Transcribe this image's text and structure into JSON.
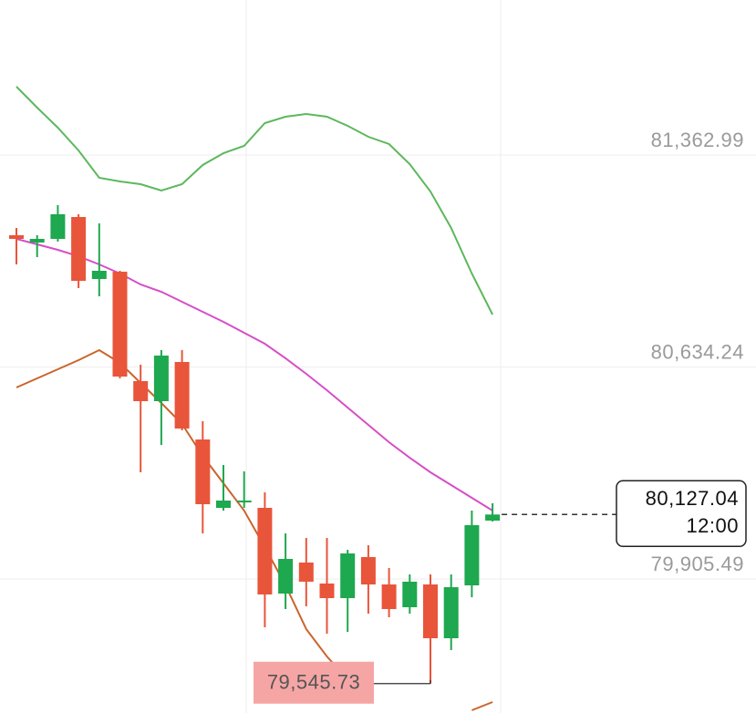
{
  "chart_data": {
    "type": "candlestick",
    "ylim": [
      79444.7,
      81895.8
    ],
    "yticks": [
      {
        "value": 79905.49,
        "label": "79,905.49"
      },
      {
        "value": 80634.24,
        "label": "80,634.24"
      },
      {
        "value": 81362.99,
        "label": "81,362.99"
      }
    ],
    "grid": true,
    "up_color": "#1ea84f",
    "down_color": "#e8553a",
    "open": [
      81087.1,
      81062.0,
      81074.6,
      81149.8,
      80936.7,
      80961.7,
      80585.6,
      80516.7,
      80651.4,
      80385.0,
      80149.9,
      80168.7,
      80149.9,
      79855.3,
      79961.9,
      79889.8,
      79839.6,
      79980.7,
      79886.6,
      79808.3,
      79886.6,
      79701.7,
      79883.5,
      80106.1
    ],
    "high": [
      81112.2,
      81087.1,
      81190.6,
      81159.2,
      81127.9,
      80964.9,
      80642.0,
      80692.2,
      80692.2,
      80447.7,
      80297.3,
      80275.3,
      80203.2,
      80062.2,
      80046.5,
      80046.5,
      80005.8,
      80021.4,
      79943.1,
      79921.1,
      79921.1,
      79921.1,
      80140.5,
      80165.6
    ],
    "low": [
      80986.8,
      81011.9,
      81065.2,
      80905.3,
      80877.1,
      80595.0,
      80272.2,
      80366.2,
      80416.4,
      80062.2,
      80140.5,
      80149.9,
      79739.3,
      79802.0,
      79811.4,
      79717.4,
      79723.7,
      79786.3,
      79773.8,
      79786.3,
      79545.73,
      79661.0,
      79842.8,
      80102.9
    ],
    "close": [
      81074.6,
      81074.6,
      81159.2,
      80930.4,
      80964.9,
      80601.3,
      80516.7,
      80673.4,
      80422.6,
      80162.5,
      80175.0,
      80175.0,
      79852.2,
      79974.4,
      79896.1,
      79839.6,
      79993.2,
      79886.6,
      79802.0,
      79896.1,
      79701.7,
      79877.2,
      80090.4,
      80127.04
    ],
    "lines": [
      {
        "color": "#5cb85c",
        "values": [
          81598.0,
          81525.9,
          81457.0,
          81378.6,
          81284.6,
          81272.1,
          81262.6,
          81240.7,
          81262.6,
          81328.5,
          81369.2,
          81394.3,
          81472.7,
          81494.6,
          81504.0,
          81494.6,
          81463.3,
          81425.6,
          81400.6,
          81331.6,
          81237.6,
          81112.2,
          80955.5,
          80814.4
        ]
      },
      {
        "color": "#d64ec6",
        "values": [
          81074.6,
          81055.8,
          81037.0,
          81015.0,
          80986.8,
          80955.5,
          80917.9,
          80892.8,
          80858.3,
          80823.8,
          80789.4,
          80751.7,
          80714.1,
          80664.0,
          80610.7,
          80554.3,
          80494.7,
          80435.2,
          80375.6,
          80322.3,
          80272.2,
          80228.3,
          80184.4,
          80140.5
        ]
      },
      {
        "color": "#c9652c",
        "values": [
          80563.7,
          80595.0,
          80626.4,
          80657.7,
          80692.2,
          80648.3,
          80579.4,
          80510.4,
          80438.3,
          80328.6,
          80234.6,
          80140.5,
          80015.2,
          79883.5,
          79733.1,
          79639.0,
          79560.7,
          79488.6,
          null,
          null,
          null,
          null,
          79454.1,
          79482.3
        ]
      }
    ],
    "last_price": {
      "value": 80127.04,
      "label": "80,127.04"
    },
    "countdown": "12:00",
    "low_marker": {
      "value": 79545.73,
      "label": "79,545.73"
    }
  }
}
